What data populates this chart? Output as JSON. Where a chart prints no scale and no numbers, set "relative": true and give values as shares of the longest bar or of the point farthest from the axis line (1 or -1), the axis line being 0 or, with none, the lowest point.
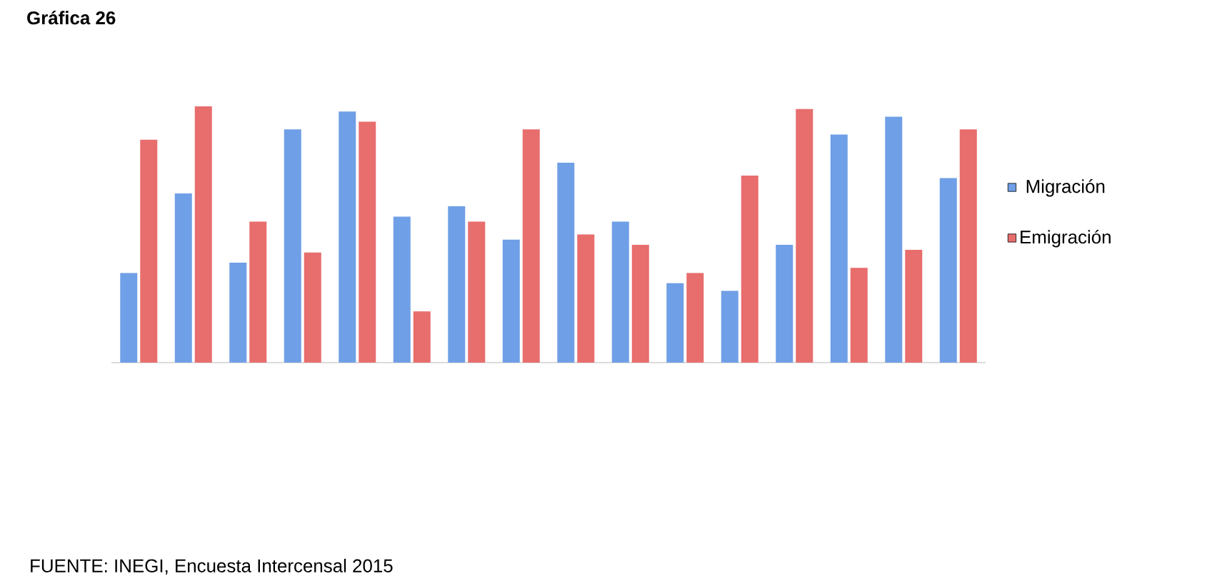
{
  "chart_data": {
    "type": "bar",
    "title": "Gráfica 26",
    "relative": true,
    "legend": "right",
    "categories": [
      null,
      null,
      null,
      null,
      null,
      null,
      null,
      null,
      null,
      null,
      null,
      null,
      null,
      null,
      null,
      null
    ],
    "series": [
      {
        "name": "Migración",
        "color": "#6f9fe6",
        "values": [
          0.35,
          0.66,
          0.39,
          0.91,
          0.98,
          0.57,
          0.61,
          0.48,
          0.78,
          0.55,
          0.31,
          0.28,
          0.46,
          0.89,
          0.96,
          0.72
        ]
      },
      {
        "name": "Emigración",
        "color": "#e86d6d",
        "values": [
          0.87,
          1,
          0.55,
          0.43,
          0.94,
          0.2,
          0.55,
          0.91,
          0.5,
          0.46,
          0.35,
          0.73,
          0.99,
          0.37,
          0.44,
          0.91
        ]
      }
    ],
    "annotations": [
      "FUENTE: INEGI, Encuesta Intercensal 2015"
    ]
  }
}
